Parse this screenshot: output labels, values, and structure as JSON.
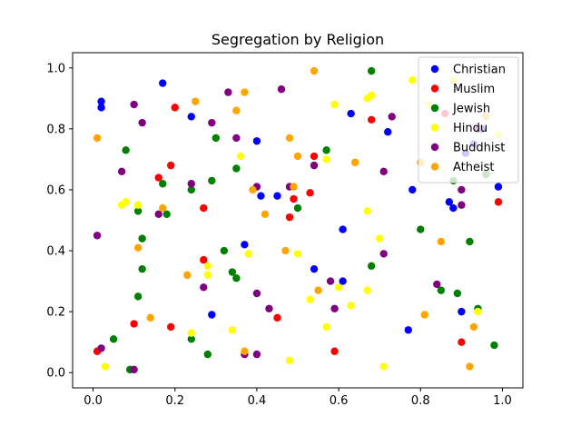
{
  "chart_data": {
    "type": "scatter",
    "title": "Segregation by Religion",
    "xlabel": "",
    "ylabel": "",
    "xlim": [
      -0.05,
      1.05
    ],
    "ylim": [
      -0.05,
      1.05
    ],
    "xticks": [
      "0.0",
      "0.2",
      "0.4",
      "0.6",
      "0.8",
      "1.0"
    ],
    "yticks": [
      "0.0",
      "0.2",
      "0.4",
      "0.6",
      "0.8",
      "1.0"
    ],
    "grid": false,
    "legend_position": "top-right",
    "series": [
      {
        "name": "Christian",
        "color": "#0000ff",
        "points": [
          [
            0.02,
            0.89
          ],
          [
            0.02,
            0.87
          ],
          [
            0.17,
            0.95
          ],
          [
            0.24,
            0.84
          ],
          [
            0.4,
            0.76
          ],
          [
            0.41,
            0.58
          ],
          [
            0.45,
            0.58
          ],
          [
            0.37,
            0.42
          ],
          [
            0.29,
            0.19
          ],
          [
            0.54,
            0.34
          ],
          [
            0.61,
            0.47
          ],
          [
            0.61,
            0.3
          ],
          [
            0.63,
            0.85
          ],
          [
            0.72,
            0.79
          ],
          [
            0.78,
            0.6
          ],
          [
            0.77,
            0.14
          ],
          [
            0.87,
            0.56
          ],
          [
            0.88,
            0.54
          ],
          [
            0.9,
            0.2
          ],
          [
            0.91,
            0.72
          ],
          [
            0.99,
            0.61
          ],
          [
            0.93,
            0.75
          ],
          [
            0.95,
            0.8
          ]
        ]
      },
      {
        "name": "Muslim",
        "color": "#ff0000",
        "points": [
          [
            0.01,
            0.07
          ],
          [
            0.1,
            0.16
          ],
          [
            0.16,
            0.64
          ],
          [
            0.19,
            0.68
          ],
          [
            0.2,
            0.87
          ],
          [
            0.19,
            0.15
          ],
          [
            0.27,
            0.54
          ],
          [
            0.27,
            0.37
          ],
          [
            0.45,
            0.18
          ],
          [
            0.48,
            0.51
          ],
          [
            0.49,
            0.57
          ],
          [
            0.53,
            0.59
          ],
          [
            0.54,
            0.71
          ],
          [
            0.59,
            0.07
          ],
          [
            0.68,
            0.83
          ],
          [
            0.86,
            0.85
          ],
          [
            0.9,
            0.1
          ],
          [
            0.99,
            0.56
          ]
        ]
      },
      {
        "name": "Jewish",
        "color": "#008000",
        "points": [
          [
            0.05,
            0.11
          ],
          [
            0.08,
            0.73
          ],
          [
            0.09,
            0.01
          ],
          [
            0.11,
            0.53
          ],
          [
            0.11,
            0.25
          ],
          [
            0.12,
            0.44
          ],
          [
            0.12,
            0.34
          ],
          [
            0.17,
            0.62
          ],
          [
            0.18,
            0.52
          ],
          [
            0.24,
            0.6
          ],
          [
            0.24,
            0.11
          ],
          [
            0.28,
            0.06
          ],
          [
            0.29,
            0.63
          ],
          [
            0.3,
            0.77
          ],
          [
            0.32,
            0.4
          ],
          [
            0.34,
            0.33
          ],
          [
            0.35,
            0.31
          ],
          [
            0.35,
            0.67
          ],
          [
            0.5,
            0.54
          ],
          [
            0.57,
            0.73
          ],
          [
            0.68,
            0.35
          ],
          [
            0.68,
            0.99
          ],
          [
            0.8,
            0.47
          ],
          [
            0.85,
            0.27
          ],
          [
            0.88,
            0.63
          ],
          [
            0.89,
            0.26
          ],
          [
            0.92,
            0.43
          ],
          [
            0.94,
            0.21
          ],
          [
            0.96,
            0.65
          ],
          [
            0.98,
            0.09
          ]
        ]
      },
      {
        "name": "Hindu",
        "color": "#ffff00",
        "points": [
          [
            0.03,
            0.02
          ],
          [
            0.07,
            0.55
          ],
          [
            0.08,
            0.56
          ],
          [
            0.11,
            0.55
          ],
          [
            0.24,
            0.13
          ],
          [
            0.28,
            0.32
          ],
          [
            0.28,
            0.35
          ],
          [
            0.34,
            0.14
          ],
          [
            0.36,
            0.71
          ],
          [
            0.38,
            0.39
          ],
          [
            0.48,
            0.04
          ],
          [
            0.5,
            0.39
          ],
          [
            0.53,
            0.24
          ],
          [
            0.57,
            0.7
          ],
          [
            0.57,
            0.15
          ],
          [
            0.59,
            0.88
          ],
          [
            0.6,
            0.28
          ],
          [
            0.63,
            0.22
          ],
          [
            0.67,
            0.9
          ],
          [
            0.67,
            0.53
          ],
          [
            0.67,
            0.27
          ],
          [
            0.68,
            0.91
          ],
          [
            0.7,
            0.44
          ],
          [
            0.71,
            0.02
          ],
          [
            0.78,
            0.96
          ],
          [
            0.82,
            0.88
          ],
          [
            0.88,
            0.96
          ],
          [
            0.94,
            0.2
          ],
          [
            0.99,
            0.78
          ]
        ]
      },
      {
        "name": "Buddhist",
        "color": "#800080",
        "points": [
          [
            0.01,
            0.45
          ],
          [
            0.02,
            0.08
          ],
          [
            0.07,
            0.66
          ],
          [
            0.1,
            0.88
          ],
          [
            0.1,
            0.01
          ],
          [
            0.12,
            0.82
          ],
          [
            0.16,
            0.52
          ],
          [
            0.24,
            0.62
          ],
          [
            0.27,
            0.28
          ],
          [
            0.29,
            0.82
          ],
          [
            0.33,
            0.92
          ],
          [
            0.35,
            0.77
          ],
          [
            0.37,
            0.06
          ],
          [
            0.4,
            0.61
          ],
          [
            0.4,
            0.26
          ],
          [
            0.4,
            0.06
          ],
          [
            0.43,
            0.21
          ],
          [
            0.46,
            0.93
          ],
          [
            0.48,
            0.61
          ],
          [
            0.54,
            0.68
          ],
          [
            0.58,
            0.3
          ],
          [
            0.59,
            0.21
          ],
          [
            0.71,
            0.66
          ],
          [
            0.71,
            0.39
          ],
          [
            0.73,
            0.84
          ],
          [
            0.84,
            0.29
          ],
          [
            0.9,
            0.55
          ],
          [
            0.9,
            0.6
          ],
          [
            0.94,
            0.8
          ]
        ]
      },
      {
        "name": "Atheist",
        "color": "#ffa500",
        "points": [
          [
            0.01,
            0.77
          ],
          [
            0.11,
            0.41
          ],
          [
            0.14,
            0.18
          ],
          [
            0.17,
            0.54
          ],
          [
            0.23,
            0.32
          ],
          [
            0.25,
            0.89
          ],
          [
            0.35,
            0.86
          ],
          [
            0.37,
            0.92
          ],
          [
            0.37,
            0.07
          ],
          [
            0.39,
            0.6
          ],
          [
            0.42,
            0.52
          ],
          [
            0.47,
            0.4
          ],
          [
            0.48,
            0.77
          ],
          [
            0.49,
            0.61
          ],
          [
            0.5,
            0.71
          ],
          [
            0.54,
            0.99
          ],
          [
            0.55,
            0.27
          ],
          [
            0.64,
            0.69
          ],
          [
            0.8,
            0.69
          ],
          [
            0.81,
            0.19
          ],
          [
            0.85,
            0.43
          ],
          [
            0.93,
            0.15
          ],
          [
            0.92,
            0.02
          ],
          [
            0.96,
            0.84
          ]
        ]
      }
    ]
  }
}
